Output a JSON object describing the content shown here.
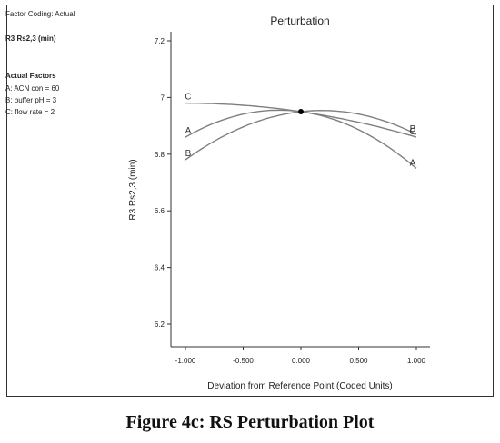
{
  "info": {
    "factor_coding": "Factor Coding: Actual",
    "response_label": "R3 Rs2,3 (min)",
    "actual_factors_heading": "Actual Factors",
    "factors": [
      "A: ACN con = 60",
      "B: buffer pH = 3",
      "C: flow rate = 2"
    ]
  },
  "caption": "Figure 4c: RS Perturbation Plot",
  "chart_data": {
    "type": "line",
    "title": "Perturbation",
    "xlabel": "Deviation from Reference Point (Coded Units)",
    "ylabel": "R3 Rs2,3 (min)",
    "xlim": [
      -1.0,
      1.0
    ],
    "ylim": [
      6.17,
      7.22
    ],
    "x_ticks": [
      -1.0,
      -0.5,
      0.0,
      0.5,
      1.0
    ],
    "x_tick_labels": [
      "-1.000",
      "-0.500",
      "0.000",
      "0.500",
      "1.000"
    ],
    "y_ticks": [
      6.2,
      6.4,
      6.6,
      6.8,
      7.0,
      7.2
    ],
    "y_tick_labels": [
      "6.2",
      "6.4",
      "6.6",
      "6.8",
      "7",
      "7.2"
    ],
    "reference_point": {
      "x": 0.0,
      "y": 6.95
    },
    "x": [
      -1.0,
      -0.5,
      0.0,
      0.5,
      1.0
    ],
    "series": [
      {
        "name": "A",
        "values": [
          6.86,
          6.93,
          6.95,
          6.89,
          6.75
        ],
        "color": "#7f7f7f"
      },
      {
        "name": "B",
        "values": [
          6.78,
          6.9,
          6.95,
          6.95,
          6.87
        ],
        "color": "#7f7f7f"
      },
      {
        "name": "C",
        "values": [
          6.98,
          6.97,
          6.95,
          6.91,
          6.86
        ],
        "color": "#7f7f7f"
      }
    ],
    "grid": false
  }
}
